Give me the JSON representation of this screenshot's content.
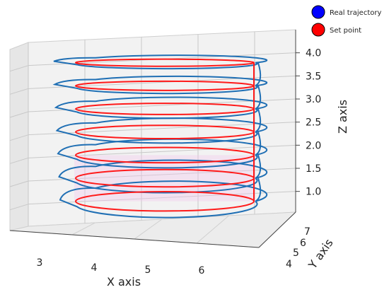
{
  "chart_data": {
    "type": "line",
    "projection": "3d",
    "xlabel": "X axis",
    "ylabel": "Y axis",
    "zlabel": "Z axis",
    "x_ticks": [
      "3",
      "4",
      "5",
      "6"
    ],
    "y_ticks": [
      "4",
      "5",
      "6",
      "7"
    ],
    "z_ticks": [
      "1.0",
      "1.5",
      "2.0",
      "2.5",
      "3.0",
      "3.5",
      "4.0"
    ],
    "z_ticks_values": [
      1.0,
      1.5,
      2.0,
      2.5,
      3.0,
      3.5,
      4.0
    ],
    "zlim": [
      0.75,
      4.5
    ],
    "grid": true,
    "legend_position": "top-right",
    "series": [
      {
        "name": "Real trajectory",
        "color": "#1f6fb4",
        "marker_color": "#0000ff",
        "circle_levels": [
          1.0,
          1.5,
          2.0,
          2.5,
          3.0,
          3.5,
          4.0
        ],
        "center": [
          5,
          5
        ],
        "radius": 2
      },
      {
        "name": "Set point",
        "color": "#ff1a1a",
        "marker_color": "#ff0000",
        "circle_levels": [
          1.0,
          1.5,
          2.0,
          2.5,
          3.0,
          3.5,
          4.0
        ],
        "center": [
          5,
          5
        ],
        "radius": 2
      }
    ]
  }
}
